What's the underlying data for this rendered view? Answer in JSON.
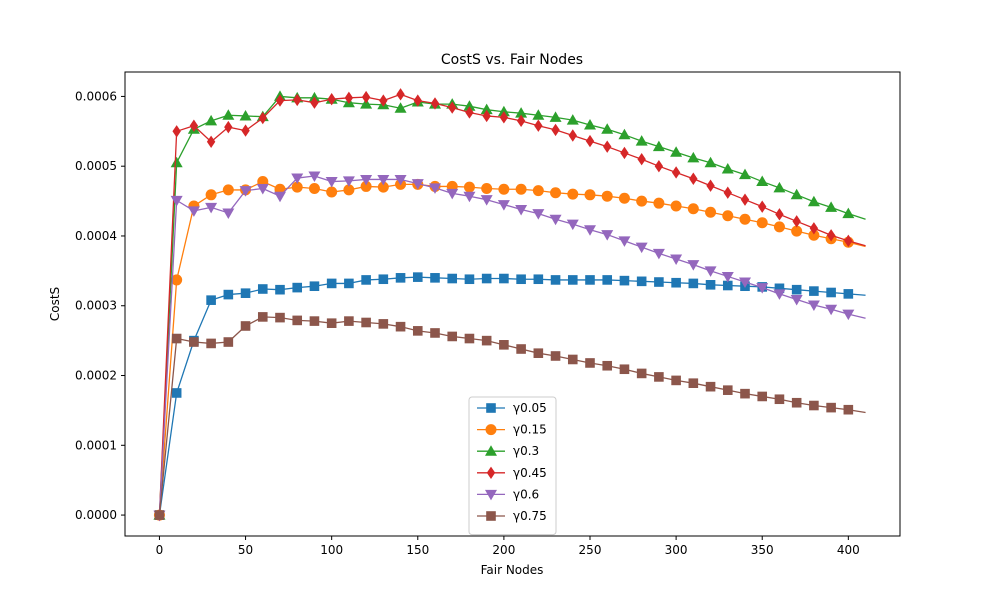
{
  "chart_data": {
    "type": "line",
    "title": "CostS vs. Fair Nodes",
    "xlabel": "Fair Nodes",
    "ylabel": "CostS",
    "xlim": [
      -20,
      430
    ],
    "ylim": [
      -3e-05,
      0.000635
    ],
    "xticks": [
      0,
      50,
      100,
      150,
      200,
      250,
      300,
      350,
      400
    ],
    "yticks": [
      0,
      0.0001,
      0.0002,
      0.0003,
      0.0004,
      0.0005,
      0.0006
    ],
    "ytick_labels": [
      "0.0000",
      "0.0001",
      "0.0002",
      "0.0003",
      "0.0004",
      "0.0005",
      "0.0006"
    ],
    "grid": false,
    "legend_position": "lower-center",
    "marker_every": 10,
    "series": [
      {
        "name": "γ0.05",
        "color": "#1f77b4",
        "marker": "square",
        "x": [
          0,
          10,
          20,
          30,
          40,
          50,
          60,
          70,
          80,
          90,
          100,
          110,
          120,
          130,
          140,
          150,
          160,
          170,
          180,
          190,
          200,
          210,
          220,
          230,
          240,
          250,
          260,
          270,
          280,
          290,
          300,
          310,
          320,
          330,
          340,
          350,
          360,
          370,
          380,
          390,
          400,
          410
        ],
        "y": [
          0,
          0.000175,
          0.00025,
          0.000308,
          0.000316,
          0.000318,
          0.000324,
          0.000323,
          0.000326,
          0.000328,
          0.000332,
          0.000332,
          0.000337,
          0.000338,
          0.00034,
          0.000341,
          0.00034,
          0.000339,
          0.000338,
          0.000339,
          0.000339,
          0.000338,
          0.000338,
          0.000337,
          0.000337,
          0.000337,
          0.000337,
          0.000336,
          0.000335,
          0.000334,
          0.000333,
          0.000332,
          0.00033,
          0.000329,
          0.000328,
          0.000327,
          0.000325,
          0.000323,
          0.000321,
          0.000319,
          0.000317,
          0.000315
        ]
      },
      {
        "name": "γ0.15",
        "color": "#ff7f0e",
        "marker": "circle",
        "x": [
          0,
          10,
          20,
          30,
          40,
          50,
          60,
          70,
          80,
          90,
          100,
          110,
          120,
          130,
          140,
          150,
          160,
          170,
          180,
          190,
          200,
          210,
          220,
          230,
          240,
          250,
          260,
          270,
          280,
          290,
          300,
          310,
          320,
          330,
          340,
          350,
          360,
          370,
          380,
          390,
          400,
          410
        ],
        "y": [
          0,
          0.000337,
          0.000443,
          0.000459,
          0.000466,
          0.000466,
          0.000478,
          0.000467,
          0.00047,
          0.000468,
          0.000463,
          0.000466,
          0.000471,
          0.00047,
          0.000474,
          0.000474,
          0.000471,
          0.000471,
          0.00047,
          0.000468,
          0.000467,
          0.000467,
          0.000465,
          0.000462,
          0.00046,
          0.000459,
          0.000457,
          0.000454,
          0.00045,
          0.000447,
          0.000443,
          0.000439,
          0.000434,
          0.000429,
          0.000424,
          0.000419,
          0.000413,
          0.000407,
          0.000401,
          0.000396,
          0.000391,
          0.000385
        ]
      },
      {
        "name": "γ0.3",
        "color": "#2ca02c",
        "marker": "triangle-up",
        "x": [
          0,
          10,
          20,
          30,
          40,
          50,
          60,
          70,
          80,
          90,
          100,
          110,
          120,
          130,
          140,
          150,
          160,
          170,
          180,
          190,
          200,
          210,
          220,
          230,
          240,
          250,
          260,
          270,
          280,
          290,
          300,
          310,
          320,
          330,
          340,
          350,
          360,
          370,
          380,
          390,
          400,
          410
        ],
        "y": [
          0,
          0.000505,
          0.000553,
          0.000565,
          0.000573,
          0.000572,
          0.000571,
          0.0006,
          0.000598,
          0.000598,
          0.000596,
          0.000591,
          0.000589,
          0.000588,
          0.000583,
          0.000592,
          0.000589,
          0.000589,
          0.000586,
          0.000581,
          0.000578,
          0.000576,
          0.000573,
          0.00057,
          0.000566,
          0.000559,
          0.000553,
          0.000545,
          0.000536,
          0.000528,
          0.00052,
          0.000512,
          0.000505,
          0.000496,
          0.000488,
          0.000478,
          0.000469,
          0.000459,
          0.000449,
          0.000441,
          0.000432,
          0.000424
        ]
      },
      {
        "name": "γ0.45",
        "color": "#d62728",
        "marker": "diamond",
        "x": [
          0,
          10,
          20,
          30,
          40,
          50,
          60,
          70,
          80,
          90,
          100,
          110,
          120,
          130,
          140,
          150,
          160,
          170,
          180,
          190,
          200,
          210,
          220,
          230,
          240,
          250,
          260,
          270,
          280,
          290,
          300,
          310,
          320,
          330,
          340,
          350,
          360,
          370,
          380,
          390,
          400,
          410
        ],
        "y": [
          0,
          0.00055,
          0.000558,
          0.000535,
          0.000556,
          0.000551,
          0.000569,
          0.000594,
          0.000595,
          0.000591,
          0.000596,
          0.000598,
          0.000599,
          0.000594,
          0.000603,
          0.000594,
          0.00059,
          0.000584,
          0.000577,
          0.000572,
          0.00057,
          0.000565,
          0.000558,
          0.000552,
          0.000544,
          0.000536,
          0.000528,
          0.000519,
          0.00051,
          0.0005,
          0.000491,
          0.000482,
          0.000472,
          0.000462,
          0.000452,
          0.000442,
          0.000431,
          0.000421,
          0.000411,
          0.000401,
          0.000393,
          0.000386
        ]
      },
      {
        "name": "γ0.6",
        "color": "#9467bd",
        "marker": "triangle-down",
        "x": [
          0,
          10,
          20,
          30,
          40,
          50,
          60,
          70,
          80,
          90,
          100,
          110,
          120,
          130,
          140,
          150,
          160,
          170,
          180,
          190,
          200,
          210,
          220,
          230,
          240,
          250,
          260,
          270,
          280,
          290,
          300,
          310,
          320,
          330,
          340,
          350,
          360,
          370,
          380,
          390,
          400,
          410
        ],
        "y": [
          0,
          0.000451,
          0.000436,
          0.000441,
          0.000433,
          0.000465,
          0.000468,
          0.000457,
          0.000483,
          0.000486,
          0.000478,
          0.000479,
          0.000481,
          0.000481,
          0.000481,
          0.000475,
          0.000469,
          0.000461,
          0.000457,
          0.000452,
          0.000445,
          0.000438,
          0.000432,
          0.000424,
          0.000417,
          0.000409,
          0.000402,
          0.000393,
          0.000384,
          0.000375,
          0.000367,
          0.000359,
          0.00035,
          0.000342,
          0.000334,
          0.000326,
          0.000317,
          0.000309,
          0.000301,
          0.000295,
          0.000288,
          0.000282
        ]
      },
      {
        "name": "γ0.75",
        "color": "#8c564b",
        "marker": "square",
        "x": [
          0,
          10,
          20,
          30,
          40,
          50,
          60,
          70,
          80,
          90,
          100,
          110,
          120,
          130,
          140,
          150,
          160,
          170,
          180,
          190,
          200,
          210,
          220,
          230,
          240,
          250,
          260,
          270,
          280,
          290,
          300,
          310,
          320,
          330,
          340,
          350,
          360,
          370,
          380,
          390,
          400,
          410
        ],
        "y": [
          0,
          0.000253,
          0.000248,
          0.000246,
          0.000248,
          0.000271,
          0.000284,
          0.000283,
          0.000279,
          0.000278,
          0.000275,
          0.000278,
          0.000276,
          0.000274,
          0.00027,
          0.000264,
          0.000261,
          0.000256,
          0.000253,
          0.00025,
          0.000244,
          0.000238,
          0.000232,
          0.000228,
          0.000223,
          0.000218,
          0.000214,
          0.000209,
          0.000203,
          0.000198,
          0.000193,
          0.000189,
          0.000184,
          0.000179,
          0.000174,
          0.00017,
          0.000166,
          0.000161,
          0.000157,
          0.000154,
          0.000151,
          0.000147
        ]
      }
    ]
  }
}
